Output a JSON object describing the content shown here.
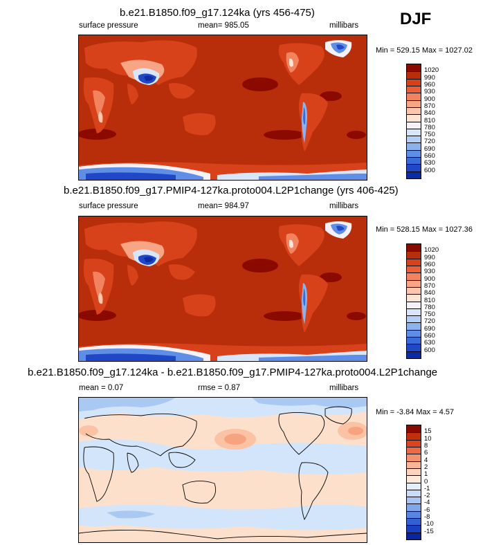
{
  "season": "DJF",
  "colors": {
    "ocean_1020": "#b92e0a",
    "land_990": "#d8421a",
    "brown": "#8b0a00",
    "diff_pos": "#fde0cc",
    "diff_neg": "#d3e5fa",
    "diff_neg2": "#a9c8f2"
  },
  "chart_data": [
    {
      "type": "heatmap",
      "title": "b.e21.B1850.f09_g17.124ka (yrs 456-475)",
      "left_label": "surface pressure",
      "center_label": "mean= 985.05",
      "right_label": "millibars",
      "minmax": "Min = 529.15 Max = 1027.02",
      "legend": {
        "labels": [
          "1020",
          "990",
          "960",
          "930",
          "900",
          "870",
          "840",
          "810",
          "780",
          "750",
          "720",
          "690",
          "660",
          "630",
          "600"
        ],
        "colors": [
          "#8b0a00",
          "#b92e0a",
          "#d8421a",
          "#ec5e36",
          "#f3825f",
          "#f8a585",
          "#fbc6ad",
          "#fde3d4",
          "#f4f2f6",
          "#d7e6fb",
          "#b4cff5",
          "#8cb2ee",
          "#5f8ee6",
          "#3a6bdb",
          "#2048c6",
          "#0b2ca4"
        ]
      }
    },
    {
      "type": "heatmap",
      "title": "b.e21.B1850.f09_g17.PMIP4-127ka.proto004.L2P1change (yrs 406-425)",
      "left_label": "surface pressure",
      "center_label": "mean= 984.97",
      "right_label": "millibars",
      "minmax": "Min = 528.15 Max = 1027.36",
      "legend": {
        "labels": [
          "1020",
          "990",
          "960",
          "930",
          "900",
          "870",
          "840",
          "810",
          "780",
          "750",
          "720",
          "690",
          "660",
          "630",
          "600"
        ],
        "colors": [
          "#8b0a00",
          "#b92e0a",
          "#d8421a",
          "#ec5e36",
          "#f3825f",
          "#f8a585",
          "#fbc6ad",
          "#fde3d4",
          "#f4f2f6",
          "#d7e6fb",
          "#b4cff5",
          "#8cb2ee",
          "#5f8ee6",
          "#3a6bdb",
          "#2048c6",
          "#0b2ca4"
        ]
      }
    },
    {
      "type": "heatmap",
      "title": "b.e21.B1850.f09_g17.124ka - b.e21.B1850.f09_g17.PMIP4-127ka.proto004.L2P1change",
      "left_label": "mean =  0.07",
      "center_label": "rmse =  0.87",
      "right_label": "millibars",
      "minmax": "Min =  -3.84 Max =  4.57",
      "legend": {
        "labels": [
          "15",
          "10",
          "8",
          "6",
          "4",
          "2",
          "1",
          "0",
          "-1",
          "-2",
          "-4",
          "-6",
          "-8",
          "-10",
          "-15"
        ],
        "colors": [
          "#8b0a00",
          "#c0300c",
          "#dc4420",
          "#ec6a44",
          "#f4916e",
          "#f9b696",
          "#fcd3bd",
          "#fde8dc",
          "#e3eefb",
          "#c9dcf7",
          "#a7c4f2",
          "#80a7eb",
          "#5884e2",
          "#3460d6",
          "#1a3fc0",
          "#0a249c"
        ]
      }
    }
  ]
}
